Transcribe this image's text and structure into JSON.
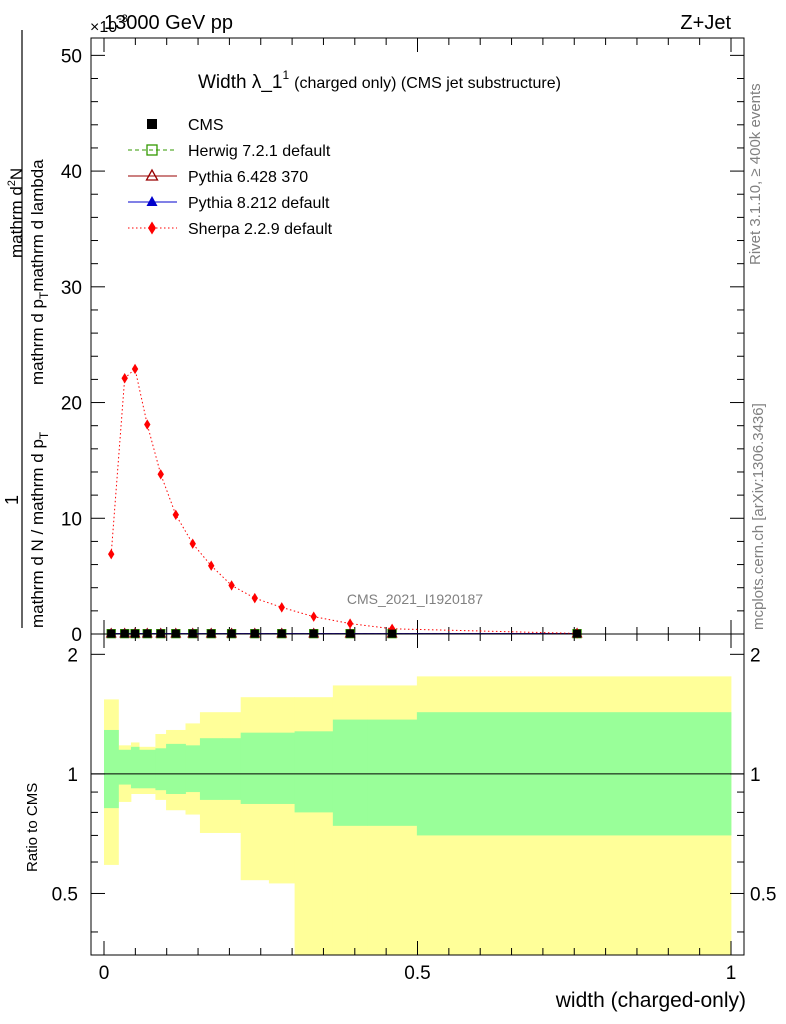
{
  "header": {
    "left": "13000 GeV pp",
    "right": "Z+Jet",
    "exponent": "×10",
    "exponent_power": "-3"
  },
  "side_text": {
    "rivet": "Rivet 3.1.10, ≥ 400k events",
    "mcplots": "mcplots.cern.ch [arXiv:1306.3436]"
  },
  "chart_data": [
    {
      "type": "line",
      "title_main": "Width λ_1",
      "title_sup": "1",
      "title_rest": "(charged only) (CMS jet substructure)",
      "watermark": "CMS_2021_I1920187",
      "ylabel": {
        "numerator": "1",
        "denominator": "mathrm d N / mathrm d p",
        "denominator_sub": "T",
        "right_num": "mathrm d",
        "right_num_sup": "2",
        "right_num_rest": "N",
        "right_den_a": "mathrm d p",
        "right_den_sub": "T",
        "right_den_b": "mathrm d lambda"
      },
      "xlim": [
        0,
        1
      ],
      "ylim": [
        0,
        51.5
      ],
      "y_scale_label": "×10^-3",
      "yticks": [
        0,
        10,
        20,
        30,
        40,
        50
      ],
      "ytick_labels": [
        "0",
        "10",
        "20",
        "30",
        "40",
        "50"
      ],
      "x": [
        0.0115,
        0.033,
        0.0495,
        0.069,
        0.0905,
        0.1145,
        0.1415,
        0.171,
        0.2035,
        0.2405,
        0.2835,
        0.3345,
        0.3925,
        0.4595,
        0.7545
      ],
      "legend": [
        {
          "name": "CMS",
          "color": "#000000",
          "marker": "square-filled"
        },
        {
          "name": "Herwig 7.2.1 default",
          "color": "#339900",
          "marker": "square-open"
        },
        {
          "name": "Pythia 6.428 370",
          "color": "#990000",
          "marker": "triangle-open"
        },
        {
          "name": "Pythia 8.212 default",
          "color": "#0000cc",
          "marker": "triangle-filled"
        },
        {
          "name": "Sherpa 2.2.9 default",
          "color": "#ff0000",
          "marker": "diamond-filled"
        }
      ],
      "series": [
        {
          "name": "CMS",
          "values": [
            0.03,
            0.03,
            0.03,
            0.03,
            0.03,
            0.03,
            0.03,
            0.03,
            0.03,
            0.03,
            0.03,
            0.03,
            0.03,
            0.03,
            0.03
          ]
        },
        {
          "name": "Herwig 7.2.1 default",
          "values": [
            0.03,
            0.03,
            0.03,
            0.03,
            0.03,
            0.03,
            0.03,
            0.03,
            0.03,
            0.03,
            0.03,
            0.03,
            0.03,
            0.03,
            0.03
          ]
        },
        {
          "name": "Pythia 6.428 370",
          "values": [
            0.03,
            0.03,
            0.03,
            0.03,
            0.03,
            0.03,
            0.03,
            0.03,
            0.03,
            0.03,
            0.03,
            0.03,
            0.03,
            0.03,
            0.03
          ]
        },
        {
          "name": "Pythia 8.212 default",
          "values": [
            0.03,
            0.03,
            0.03,
            0.03,
            0.03,
            0.03,
            0.03,
            0.03,
            0.03,
            0.03,
            0.03,
            0.03,
            0.03,
            0.03,
            0.03
          ]
        },
        {
          "name": "Sherpa 2.2.9 default",
          "values": [
            6.9,
            22.1,
            22.9,
            18.1,
            13.8,
            10.3,
            7.8,
            5.9,
            4.2,
            3.1,
            2.3,
            1.5,
            0.9,
            0.45,
            0.05
          ]
        }
      ]
    },
    {
      "type": "area",
      "ylabel": "Ratio to CMS",
      "xlabel": "width (charged-only)",
      "xlim": [
        0,
        1
      ],
      "ylim": [
        0.35,
        2.25
      ],
      "xticks": [
        0,
        0.5,
        1
      ],
      "xtick_labels": [
        "0",
        "0.5",
        "1"
      ],
      "yticks": [
        0.5,
        1,
        2
      ],
      "ytick_labels": [
        "0.5",
        "1",
        "2"
      ],
      "reference_line": 1,
      "bin_edges": [
        0,
        0.023,
        0.043,
        0.056,
        0.082,
        0.099,
        0.13,
        0.153,
        0.189,
        0.218,
        0.263,
        0.304,
        0.365,
        0.42,
        0.499,
        1.0
      ],
      "band_inner": {
        "color": "#99ff99",
        "lo": [
          0.82,
          0.94,
          0.92,
          0.92,
          0.91,
          0.89,
          0.9,
          0.86,
          0.86,
          0.84,
          0.84,
          0.8,
          0.74,
          0.74,
          0.7
        ],
        "hi": [
          1.29,
          1.15,
          1.17,
          1.15,
          1.16,
          1.19,
          1.18,
          1.23,
          1.23,
          1.27,
          1.27,
          1.28,
          1.37,
          1.37,
          1.43
        ]
      },
      "band_outer": {
        "color": "#ffff99",
        "lo": [
          0.59,
          0.85,
          0.89,
          0.89,
          0.86,
          0.81,
          0.79,
          0.71,
          0.71,
          0.54,
          0.53,
          0.33,
          0.33,
          0.3,
          0.3
        ],
        "hi": [
          1.54,
          1.18,
          1.2,
          1.17,
          1.26,
          1.29,
          1.34,
          1.43,
          1.43,
          1.56,
          1.56,
          1.56,
          1.67,
          1.67,
          1.76
        ]
      }
    }
  ]
}
